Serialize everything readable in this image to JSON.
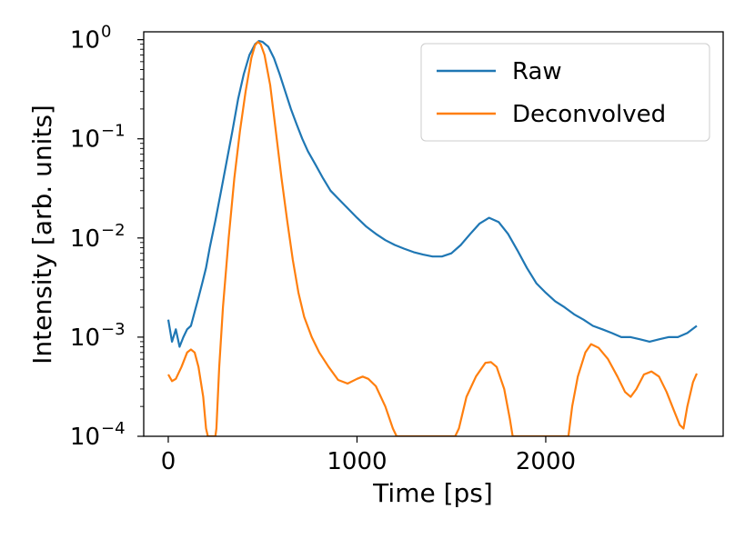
{
  "chart_data": {
    "type": "line",
    "title": "",
    "xlabel": "Time [ps]",
    "ylabel": "Intensity [arb. units]",
    "xlim": [
      -130,
      2940
    ],
    "ylim": [
      0.0001,
      1.2
    ],
    "yscale": "log",
    "xticks": [
      0,
      1000,
      2000
    ],
    "xtick_labels": [
      "0",
      "1000",
      "2000"
    ],
    "yticks": [
      {
        "value": 1,
        "base": "10",
        "exp": "0"
      },
      {
        "value": 0.1,
        "base": "10",
        "exp": "−1"
      },
      {
        "value": 0.01,
        "base": "10",
        "exp": "−2"
      },
      {
        "value": 0.001,
        "base": "10",
        "exp": "−3"
      },
      {
        "value": 0.0001,
        "base": "10",
        "exp": "−4"
      }
    ],
    "grid": false,
    "legend_position": "top-right",
    "series": [
      {
        "name": "Raw",
        "color": "#1f77b4",
        "points": [
          [
            0,
            0.0015
          ],
          [
            20,
            0.0009
          ],
          [
            40,
            0.0012
          ],
          [
            60,
            0.0008
          ],
          [
            80,
            0.001
          ],
          [
            100,
            0.0012
          ],
          [
            120,
            0.0013
          ],
          [
            140,
            0.0018
          ],
          [
            160,
            0.0025
          ],
          [
            180,
            0.0035
          ],
          [
            200,
            0.005
          ],
          [
            220,
            0.008
          ],
          [
            250,
            0.015
          ],
          [
            280,
            0.03
          ],
          [
            310,
            0.06
          ],
          [
            340,
            0.12
          ],
          [
            370,
            0.25
          ],
          [
            400,
            0.45
          ],
          [
            430,
            0.7
          ],
          [
            460,
            0.9
          ],
          [
            480,
            0.97
          ],
          [
            500,
            0.95
          ],
          [
            530,
            0.85
          ],
          [
            560,
            0.65
          ],
          [
            590,
            0.45
          ],
          [
            620,
            0.3
          ],
          [
            650,
            0.2
          ],
          [
            680,
            0.14
          ],
          [
            710,
            0.1
          ],
          [
            740,
            0.075
          ],
          [
            780,
            0.055
          ],
          [
            820,
            0.04
          ],
          [
            860,
            0.03
          ],
          [
            900,
            0.025
          ],
          [
            950,
            0.02
          ],
          [
            1000,
            0.016
          ],
          [
            1050,
            0.013
          ],
          [
            1100,
            0.011
          ],
          [
            1150,
            0.0095
          ],
          [
            1200,
            0.0085
          ],
          [
            1250,
            0.0078
          ],
          [
            1300,
            0.0072
          ],
          [
            1350,
            0.0068
          ],
          [
            1400,
            0.0065
          ],
          [
            1450,
            0.0065
          ],
          [
            1500,
            0.007
          ],
          [
            1550,
            0.0085
          ],
          [
            1600,
            0.011
          ],
          [
            1650,
            0.014
          ],
          [
            1700,
            0.016
          ],
          [
            1750,
            0.0145
          ],
          [
            1800,
            0.011
          ],
          [
            1850,
            0.0075
          ],
          [
            1900,
            0.005
          ],
          [
            1950,
            0.0035
          ],
          [
            2000,
            0.0028
          ],
          [
            2050,
            0.0023
          ],
          [
            2100,
            0.002
          ],
          [
            2150,
            0.0017
          ],
          [
            2200,
            0.0015
          ],
          [
            2250,
            0.0013
          ],
          [
            2300,
            0.0012
          ],
          [
            2350,
            0.0011
          ],
          [
            2400,
            0.001
          ],
          [
            2450,
            0.001
          ],
          [
            2500,
            0.00095
          ],
          [
            2550,
            0.0009
          ],
          [
            2600,
            0.00095
          ],
          [
            2650,
            0.001
          ],
          [
            2700,
            0.001
          ],
          [
            2750,
            0.0011
          ],
          [
            2800,
            0.0013
          ]
        ]
      },
      {
        "name": "Deconvolved",
        "color": "#ff7f0e",
        "points": [
          [
            0,
            0.00042
          ],
          [
            20,
            0.00036
          ],
          [
            40,
            0.00038
          ],
          [
            70,
            0.0005
          ],
          [
            100,
            0.0007
          ],
          [
            120,
            0.00075
          ],
          [
            140,
            0.0007
          ],
          [
            160,
            0.0005
          ],
          [
            185,
            0.00025
          ],
          [
            200,
            0.00012
          ],
          [
            210,
            0.0001
          ],
          [
            250,
            0.0001
          ],
          [
            255,
            0.00012
          ],
          [
            270,
            0.0005
          ],
          [
            290,
            0.002
          ],
          [
            320,
            0.01
          ],
          [
            350,
            0.04
          ],
          [
            380,
            0.12
          ],
          [
            410,
            0.3
          ],
          [
            440,
            0.65
          ],
          [
            460,
            0.88
          ],
          [
            475,
            0.95
          ],
          [
            490,
            0.9
          ],
          [
            510,
            0.7
          ],
          [
            540,
            0.35
          ],
          [
            570,
            0.12
          ],
          [
            600,
            0.04
          ],
          [
            630,
            0.015
          ],
          [
            660,
            0.006
          ],
          [
            690,
            0.0028
          ],
          [
            720,
            0.0016
          ],
          [
            760,
            0.001
          ],
          [
            800,
            0.0007
          ],
          [
            850,
            0.0005
          ],
          [
            900,
            0.00037
          ],
          [
            950,
            0.00034
          ],
          [
            1000,
            0.00038
          ],
          [
            1030,
            0.0004
          ],
          [
            1060,
            0.00038
          ],
          [
            1100,
            0.00032
          ],
          [
            1150,
            0.0002
          ],
          [
            1190,
            0.00012
          ],
          [
            1210,
            0.0001
          ],
          [
            1520,
            0.0001
          ],
          [
            1540,
            0.00012
          ],
          [
            1580,
            0.00025
          ],
          [
            1630,
            0.0004
          ],
          [
            1680,
            0.00055
          ],
          [
            1710,
            0.00056
          ],
          [
            1740,
            0.0005
          ],
          [
            1780,
            0.0003
          ],
          [
            1810,
            0.00015
          ],
          [
            1825,
            0.0001
          ],
          [
            2120,
            0.0001
          ],
          [
            2140,
            0.0002
          ],
          [
            2170,
            0.0004
          ],
          [
            2210,
            0.0007
          ],
          [
            2240,
            0.00085
          ],
          [
            2280,
            0.00078
          ],
          [
            2330,
            0.0006
          ],
          [
            2380,
            0.0004
          ],
          [
            2420,
            0.00028
          ],
          [
            2450,
            0.00025
          ],
          [
            2480,
            0.0003
          ],
          [
            2520,
            0.00042
          ],
          [
            2560,
            0.00045
          ],
          [
            2600,
            0.0004
          ],
          [
            2640,
            0.00028
          ],
          [
            2680,
            0.00018
          ],
          [
            2710,
            0.00013
          ],
          [
            2730,
            0.00012
          ],
          [
            2750,
            0.0002
          ],
          [
            2780,
            0.00035
          ],
          [
            2800,
            0.00043
          ]
        ]
      }
    ]
  }
}
